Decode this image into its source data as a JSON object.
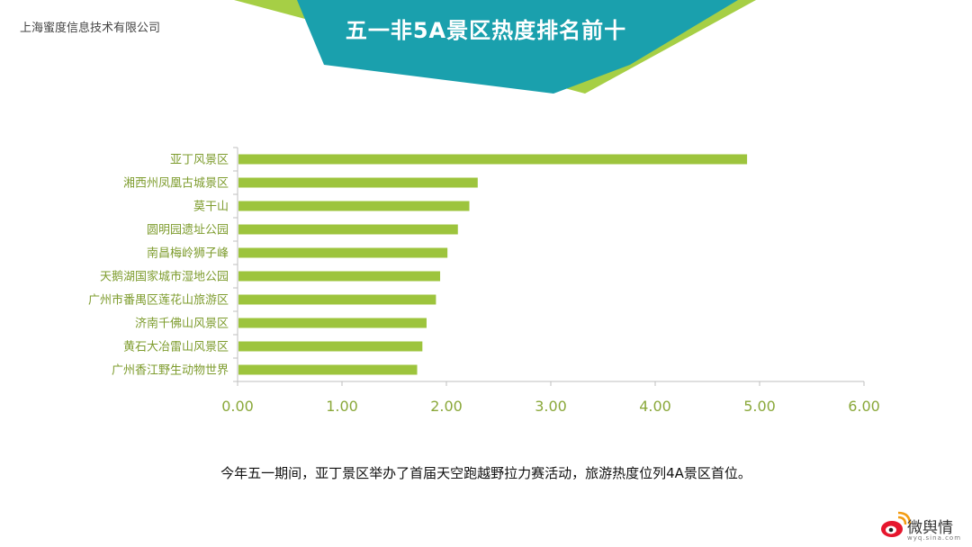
{
  "header": {
    "company": "上海蜜度信息技术有限公司",
    "title": "五一非5A景区热度排名前十"
  },
  "colors": {
    "bar": "#9dc43d",
    "banner_teal": "#1aa0ad",
    "banner_green": "#a6cf45",
    "axis": "#bfbfbf",
    "tick_text": "#8aa83a"
  },
  "chart_data": {
    "type": "bar",
    "orientation": "horizontal",
    "categories": [
      "亚丁风景区",
      "湘西州凤凰古城景区",
      "莫干山",
      "圆明园遗址公园",
      "南昌梅岭狮子峰",
      "天鹅湖国家城市湿地公园",
      "广州市番禺区莲花山旅游区",
      "济南千佛山风景区",
      "黄石大冶雷山风景区",
      "广州香江野生动物世界"
    ],
    "values": [
      4.88,
      2.3,
      2.22,
      2.11,
      2.01,
      1.94,
      1.9,
      1.81,
      1.77,
      1.72
    ],
    "xlim": [
      0,
      6
    ],
    "ticks": [
      "0.00",
      "1.00",
      "2.00",
      "3.00",
      "4.00",
      "5.00",
      "6.00"
    ],
    "grid": false,
    "title": "五一非5A景区热度排名前十"
  },
  "caption": "今年五一期间，亚丁景区举办了首届天空跑越野拉力赛活动，旅游热度位列4A景区首位。",
  "logo": {
    "icon": "weibo-eye-icon",
    "text": "微舆情",
    "sub": "wyq.sina.com"
  }
}
